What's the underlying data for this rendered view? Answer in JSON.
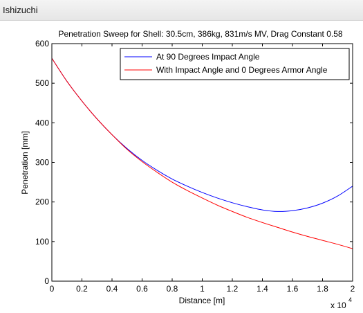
{
  "window": {
    "title": "Ishizuchi"
  },
  "chart_data": {
    "type": "line",
    "title": "Penetration Sweep for Shell: 30.5cm, 386kg, 831m/s MV, Drag Constant 0.58",
    "xlabel": "Distance [m]",
    "ylabel": "Penetration [mm]",
    "x_multiplier_label": "x 10",
    "x_multiplier_exponent": "4",
    "xlim": [
      0,
      20000
    ],
    "ylim": [
      0,
      600
    ],
    "x_tick_values": [
      0,
      2000,
      4000,
      6000,
      8000,
      10000,
      12000,
      14000,
      16000,
      18000,
      20000
    ],
    "x_tick_labels": [
      "0",
      "0.2",
      "0.4",
      "0.6",
      "0.8",
      "1",
      "1.2",
      "1.4",
      "1.6",
      "1.8",
      "2"
    ],
    "y_tick_values": [
      0,
      100,
      200,
      300,
      400,
      500,
      600
    ],
    "y_tick_labels": [
      "0",
      "100",
      "200",
      "300",
      "400",
      "500",
      "600"
    ],
    "grid": false,
    "legend_position": "top-right",
    "x": [
      0,
      1000,
      2000,
      3000,
      4000,
      5000,
      6000,
      7000,
      8000,
      9000,
      10000,
      11000,
      12000,
      13000,
      14000,
      15000,
      16000,
      17000,
      18000,
      19000,
      20000
    ],
    "series": [
      {
        "name": "At 90 Degrees Impact Angle",
        "color": "#0000ff",
        "values": [
          563,
          505,
          455,
          410,
          370,
          335,
          305,
          280,
          258,
          240,
          224,
          210,
          198,
          188,
          180,
          176,
          178,
          185,
          197,
          215,
          240
        ]
      },
      {
        "name": "With Impact Angle and 0 Degrees Armor Angle",
        "color": "#ff0000",
        "values": [
          563,
          505,
          455,
          410,
          370,
          333,
          302,
          275,
          250,
          229,
          210,
          192,
          176,
          161,
          148,
          136,
          124,
          113,
          103,
          93,
          82
        ]
      }
    ]
  }
}
